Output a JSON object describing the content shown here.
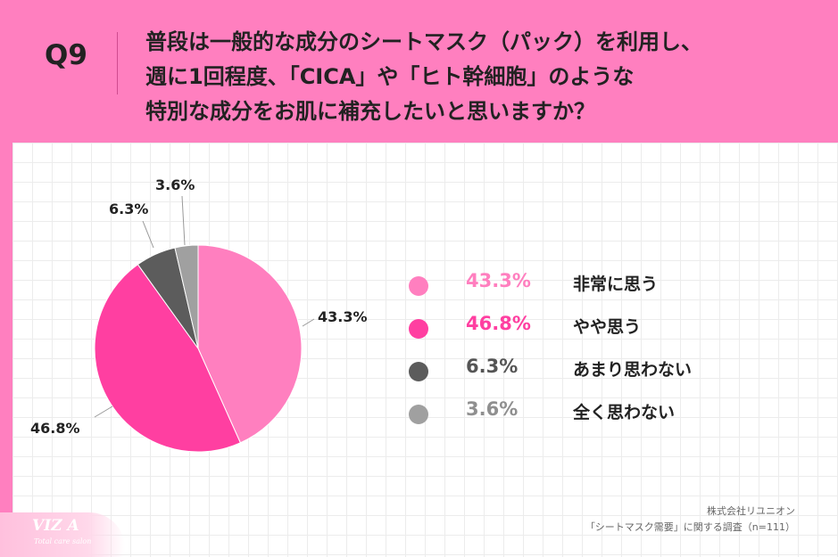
{
  "question": {
    "label": "Q9",
    "lines": [
      "普段は一般的な成分のシートマスク（パック）を利用し、",
      "週に1回程度、「CICA」や「ヒト幹細胞」のような",
      "特別な成分をお肌に補充したいと思いますか？"
    ]
  },
  "chart_data": {
    "type": "pie",
    "slices": [
      {
        "label": "非常に思う",
        "value": 43.3,
        "display": "43.3%",
        "color": "#ff7fbf"
      },
      {
        "label": "やや思う",
        "value": 46.8,
        "display": "46.8%",
        "color": "#ff3fa1"
      },
      {
        "label": "あまり思わない",
        "value": 6.3,
        "display": "6.3%",
        "color": "#5c5c5c"
      },
      {
        "label": "全く思わない",
        "value": 3.6,
        "display": "3.6%",
        "color": "#a0a0a0"
      }
    ],
    "start": "12 o'clock",
    "direction": "clockwise",
    "legend": "right"
  },
  "footer": {
    "company": "株式会社リユニオン",
    "survey": "「シートマスク需要」に関する調査（n=111）"
  },
  "logo": {
    "main": "VIZ A",
    "sub": "Total care salon"
  }
}
